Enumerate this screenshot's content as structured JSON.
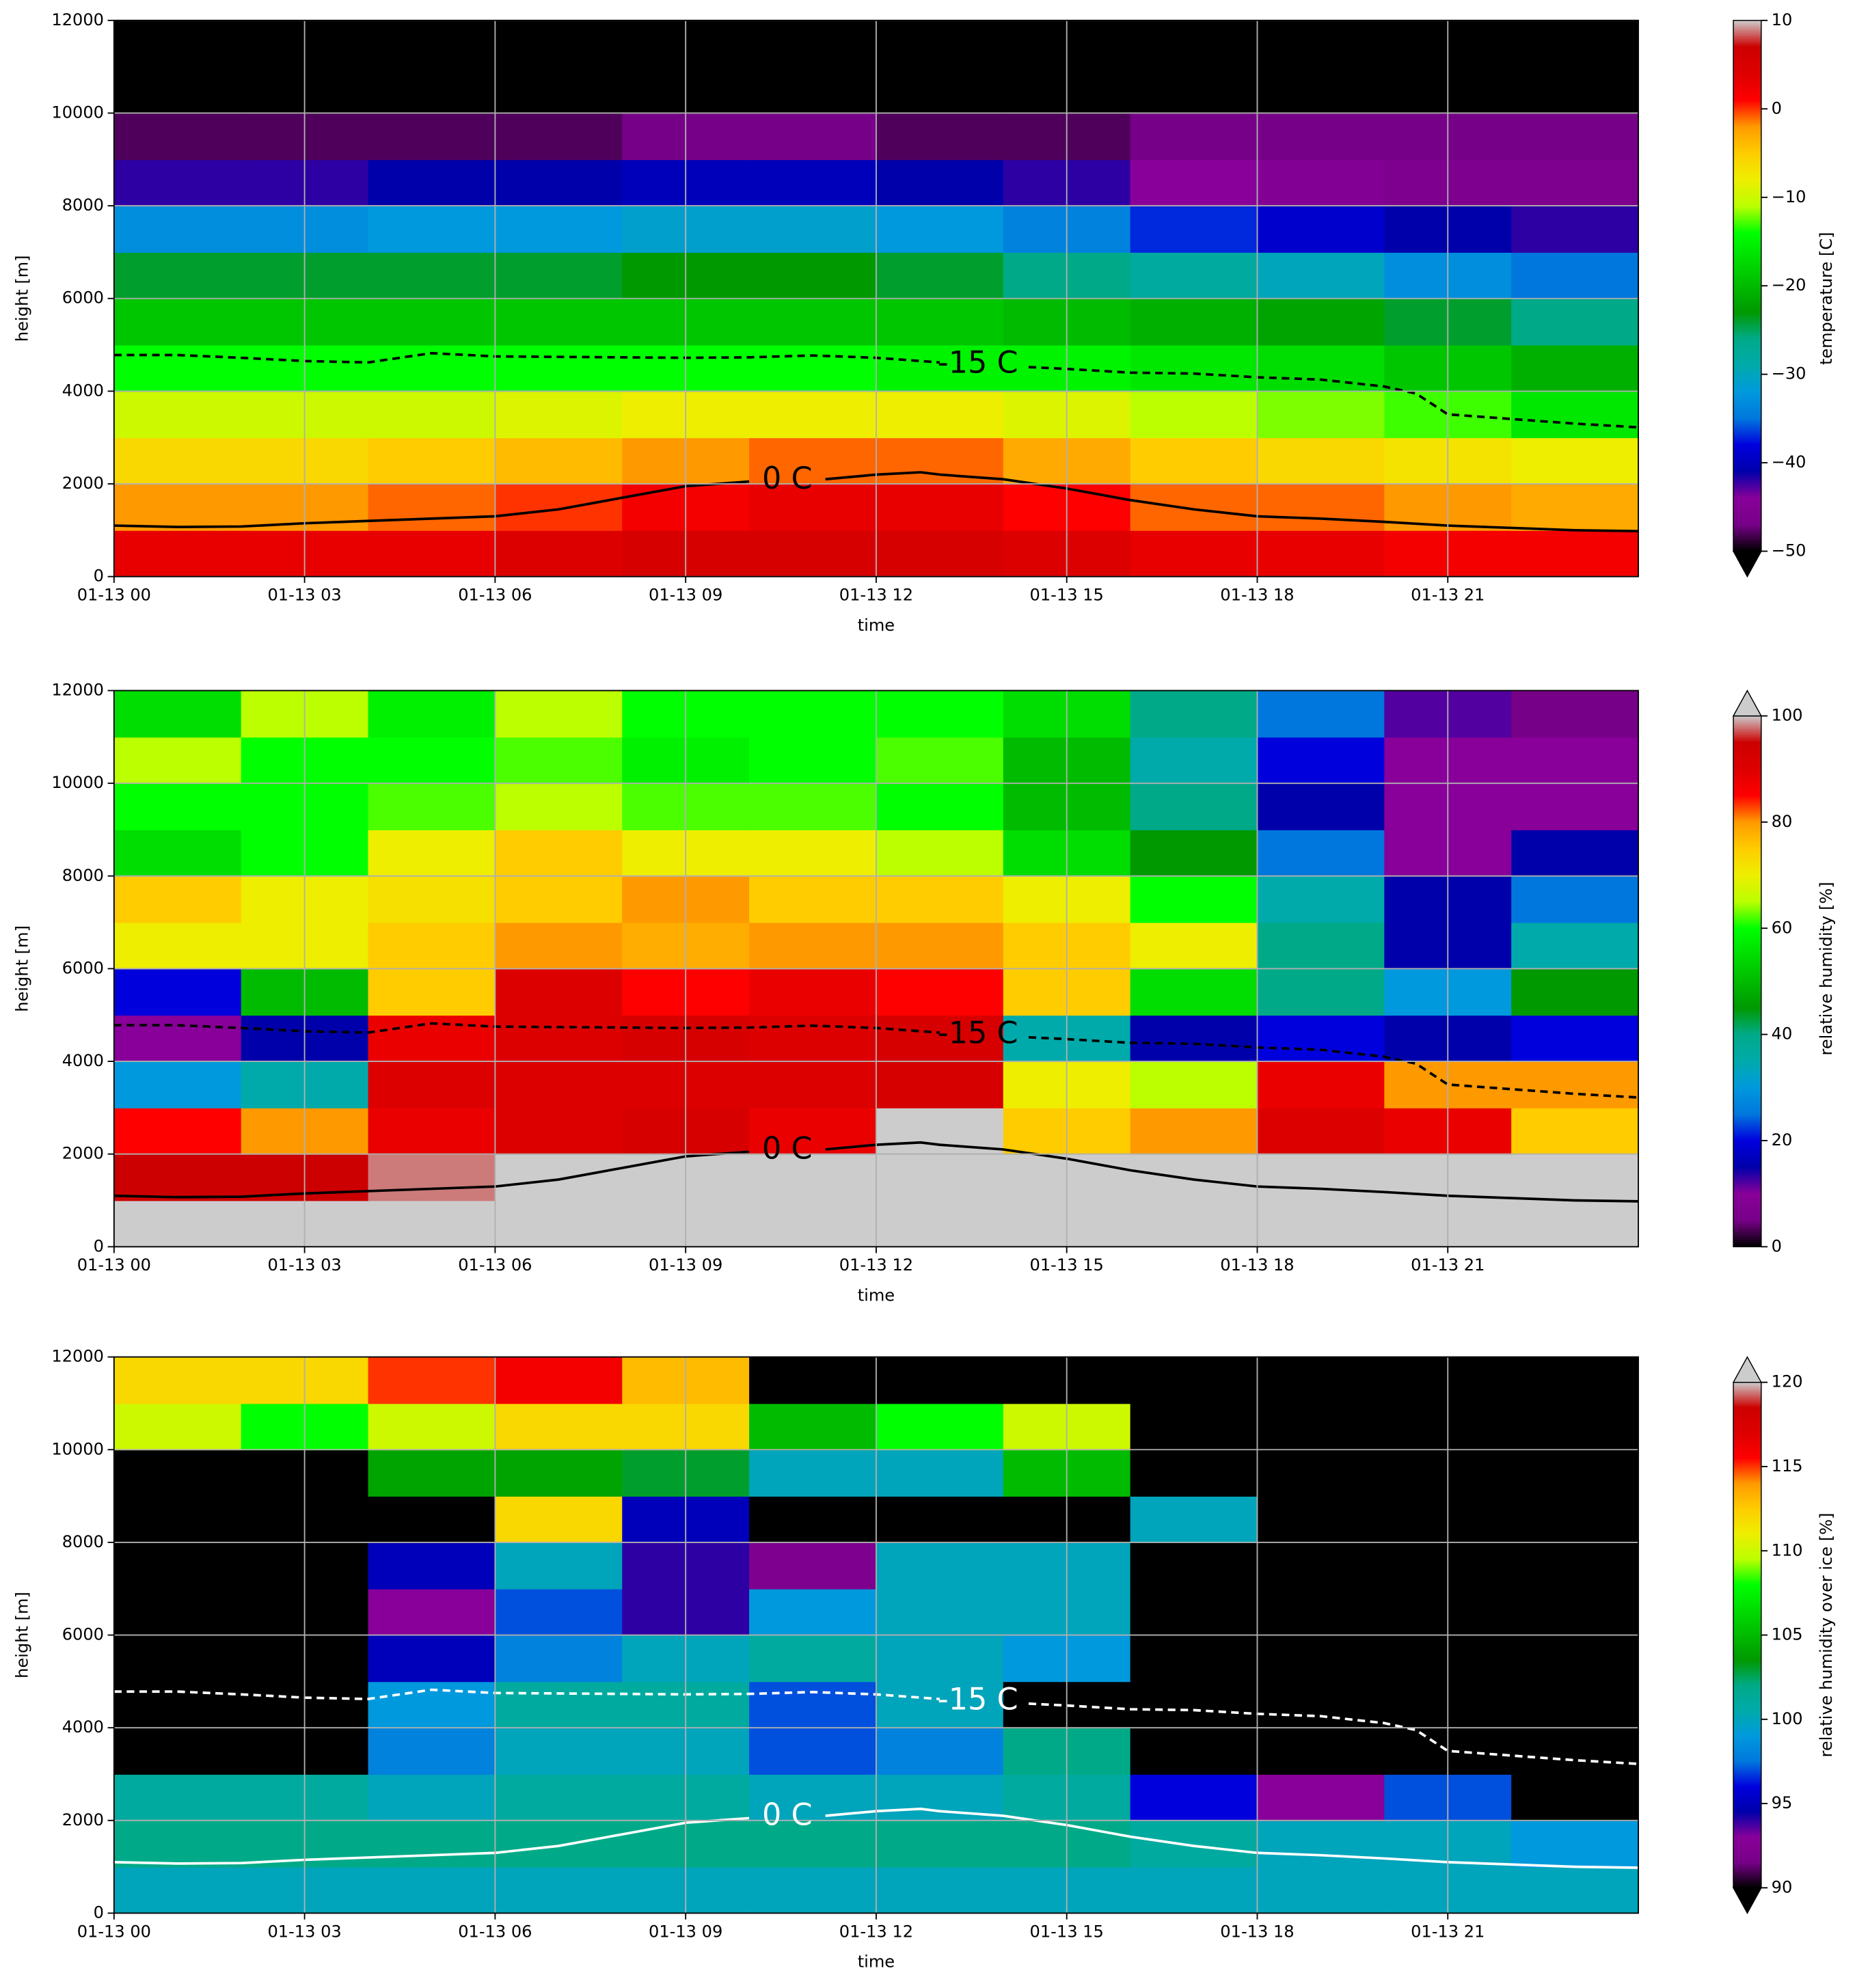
{
  "chart_data": [
    {
      "type": "heatmap",
      "xlabel": "time",
      "ylabel": "height [m]",
      "xlim": [
        0,
        24
      ],
      "ylim": [
        0,
        12000
      ],
      "xticks": [
        {
          "value": 0,
          "label": "01-13 00"
        },
        {
          "value": 3,
          "label": "01-13 03"
        },
        {
          "value": 6,
          "label": "01-13 06"
        },
        {
          "value": 9,
          "label": "01-13 09"
        },
        {
          "value": 12,
          "label": "01-13 12"
        },
        {
          "value": 15,
          "label": "01-13 15"
        },
        {
          "value": 18,
          "label": "01-13 18"
        },
        {
          "value": 21,
          "label": "01-13 21"
        }
      ],
      "yticks": [
        0,
        2000,
        4000,
        6000,
        8000,
        10000,
        12000
      ],
      "grid": true,
      "x": [
        1,
        3,
        5,
        7,
        9,
        11,
        13,
        15,
        17,
        19,
        21,
        23
      ],
      "y": [
        500,
        1500,
        2500,
        3500,
        4500,
        5500,
        6500,
        7500,
        8500,
        9500,
        10500,
        11500
      ],
      "z": [
        [
          3,
          3,
          3,
          4,
          5,
          5,
          5,
          4,
          3,
          3,
          2,
          2
        ],
        [
          -2,
          -2,
          -1,
          0,
          2,
          3,
          3,
          1,
          -1,
          -1,
          -2,
          -3
        ],
        [
          -6,
          -6,
          -5,
          -4,
          -2,
          -1,
          -1,
          -3,
          -5,
          -6,
          -7,
          -8
        ],
        [
          -10,
          -10,
          -10,
          -9,
          -8,
          -8,
          -8,
          -9,
          -11,
          -12,
          -13,
          -16
        ],
        [
          -14,
          -14,
          -14,
          -14,
          -14,
          -14,
          -15,
          -15,
          -16,
          -17,
          -19,
          -21
        ],
        [
          -19,
          -19,
          -19,
          -19,
          -19,
          -19,
          -19,
          -20,
          -21,
          -22,
          -24,
          -26
        ],
        [
          -24,
          -24,
          -24,
          -24,
          -23,
          -23,
          -24,
          -26,
          -28,
          -30,
          -33,
          -35
        ],
        [
          -33,
          -33,
          -32,
          -32,
          -31,
          -31,
          -32,
          -34,
          -37,
          -39,
          -41,
          -42
        ],
        [
          -42,
          -42,
          -41,
          -41,
          -40,
          -40,
          -41,
          -42,
          -44,
          -45,
          -46,
          -46
        ],
        [
          -48,
          -48,
          -48,
          -48,
          -47,
          -47,
          -48,
          -48,
          -47,
          -47,
          -47,
          -47
        ],
        [
          -56,
          -56,
          -56,
          -56,
          -56,
          -56,
          -56,
          -56,
          -56,
          -56,
          -56,
          -56
        ],
        [
          -58,
          -58,
          -58,
          -58,
          -58,
          -58,
          -58,
          -58,
          -58,
          -58,
          -58,
          -58
        ]
      ],
      "colormap": "nipy_spectral",
      "under_color": "#000000",
      "over_color": "#cccccc",
      "colorbar": {
        "label": "temperature [C]",
        "lim": [
          -50,
          10
        ],
        "extend": "min",
        "ticks": [
          {
            "value": -50,
            "label": "−50"
          },
          {
            "value": -40,
            "label": "−40"
          },
          {
            "value": -30,
            "label": "−30"
          },
          {
            "value": -20,
            "label": "−20"
          },
          {
            "value": -10,
            "label": "−10"
          },
          0,
          10
        ]
      },
      "contours": [
        {
          "label": "0 C",
          "color": "#000000",
          "dashed": false,
          "x": [
            0,
            1,
            2,
            3,
            4,
            5,
            6,
            7,
            8,
            9,
            10,
            10.6,
            11.2,
            12,
            12.7,
            13,
            14,
            15,
            16,
            17,
            18,
            19,
            20,
            21,
            22,
            23,
            24
          ],
          "values": [
            1100,
            1070,
            1080,
            1150,
            1200,
            1250,
            1300,
            1450,
            1700,
            1950,
            2050,
            null,
            2100,
            2200,
            2250,
            2200,
            2100,
            1900,
            1650,
            1450,
            1300,
            1250,
            1180,
            1100,
            1050,
            1000,
            980
          ]
        },
        {
          "label": "-15 C",
          "color": "#000000",
          "dashed": true,
          "x": [
            0,
            1,
            2,
            3,
            4,
            5,
            6,
            7,
            8,
            9,
            10,
            11,
            12,
            13,
            13.6,
            14.4,
            15,
            16,
            17,
            18,
            19,
            20,
            20.5,
            21,
            22,
            23,
            24
          ],
          "values": [
            4780,
            4780,
            4720,
            4650,
            4620,
            4820,
            4750,
            4740,
            4730,
            4720,
            4730,
            4770,
            4720,
            4620,
            null,
            4520,
            4480,
            4400,
            4380,
            4300,
            4250,
            4100,
            3950,
            3500,
            3400,
            3300,
            3220
          ]
        }
      ]
    },
    {
      "type": "heatmap",
      "xlabel": "time",
      "ylabel": "height [m]",
      "xlim": [
        0,
        24
      ],
      "ylim": [
        0,
        12000
      ],
      "xticks": [
        {
          "value": 0,
          "label": "01-13 00"
        },
        {
          "value": 3,
          "label": "01-13 03"
        },
        {
          "value": 6,
          "label": "01-13 06"
        },
        {
          "value": 9,
          "label": "01-13 09"
        },
        {
          "value": 12,
          "label": "01-13 12"
        },
        {
          "value": 15,
          "label": "01-13 15"
        },
        {
          "value": 18,
          "label": "01-13 18"
        },
        {
          "value": 21,
          "label": "01-13 21"
        }
      ],
      "yticks": [
        0,
        2000,
        4000,
        6000,
        8000,
        10000,
        12000
      ],
      "grid": true,
      "x": [
        1,
        3,
        5,
        7,
        9,
        11,
        13,
        15,
        17,
        19,
        21,
        23
      ],
      "y": [
        500,
        1500,
        2500,
        3500,
        4500,
        5500,
        6500,
        7500,
        8500,
        9500,
        10500,
        11500
      ],
      "z": [
        [
          100,
          100,
          100,
          100,
          100,
          100,
          100,
          100,
          100,
          100,
          100,
          100
        ],
        [
          95,
          95,
          98,
          100,
          100,
          100,
          100,
          100,
          100,
          100,
          100,
          100
        ],
        [
          85,
          80,
          88,
          90,
          92,
          88,
          100,
          75,
          80,
          90,
          88,
          75
        ],
        [
          30,
          35,
          90,
          90,
          90,
          90,
          92,
          70,
          65,
          88,
          80,
          80
        ],
        [
          10,
          15,
          88,
          90,
          92,
          90,
          92,
          35,
          15,
          20,
          15,
          20
        ],
        [
          20,
          50,
          75,
          90,
          85,
          88,
          85,
          75,
          55,
          40,
          30,
          45
        ],
        [
          70,
          70,
          75,
          80,
          78,
          80,
          80,
          75,
          70,
          40,
          15,
          35
        ],
        [
          75,
          70,
          72,
          75,
          80,
          75,
          75,
          70,
          60,
          35,
          15,
          25
        ],
        [
          55,
          60,
          70,
          75,
          70,
          70,
          65,
          55,
          45,
          25,
          10,
          15
        ],
        [
          60,
          60,
          62,
          65,
          62,
          62,
          60,
          50,
          40,
          15,
          10,
          10
        ],
        [
          65,
          60,
          60,
          62,
          58,
          60,
          62,
          50,
          35,
          20,
          10,
          10
        ],
        [
          55,
          65,
          58,
          65,
          60,
          60,
          60,
          55,
          40,
          25,
          12,
          5
        ]
      ],
      "colormap": "nipy_spectral",
      "under_color": "#000000",
      "over_color": "#cccccc",
      "colorbar": {
        "label": "relative humidity [%]",
        "lim": [
          0,
          100
        ],
        "extend": "max",
        "ticks": [
          0,
          20,
          40,
          60,
          80,
          100
        ]
      },
      "contours": [
        {
          "label": "0 C",
          "color": "#000000",
          "dashed": false,
          "x": [
            0,
            1,
            2,
            3,
            4,
            5,
            6,
            7,
            8,
            9,
            10,
            10.6,
            11.2,
            12,
            12.7,
            13,
            14,
            15,
            16,
            17,
            18,
            19,
            20,
            21,
            22,
            23,
            24
          ],
          "values": [
            1100,
            1070,
            1080,
            1150,
            1200,
            1250,
            1300,
            1450,
            1700,
            1950,
            2050,
            null,
            2100,
            2200,
            2250,
            2200,
            2100,
            1900,
            1650,
            1450,
            1300,
            1250,
            1180,
            1100,
            1050,
            1000,
            980
          ]
        },
        {
          "label": "-15 C",
          "color": "#000000",
          "dashed": true,
          "x": [
            0,
            1,
            2,
            3,
            4,
            5,
            6,
            7,
            8,
            9,
            10,
            11,
            12,
            13,
            13.6,
            14.4,
            15,
            16,
            17,
            18,
            19,
            20,
            20.5,
            21,
            22,
            23,
            24
          ],
          "values": [
            4780,
            4780,
            4720,
            4650,
            4620,
            4820,
            4750,
            4740,
            4730,
            4720,
            4730,
            4770,
            4720,
            4620,
            null,
            4520,
            4480,
            4400,
            4380,
            4300,
            4250,
            4100,
            3950,
            3500,
            3400,
            3300,
            3220
          ]
        }
      ]
    },
    {
      "type": "heatmap",
      "xlabel": "time",
      "ylabel": "height [m]",
      "xlim": [
        0,
        24
      ],
      "ylim": [
        0,
        12000
      ],
      "xticks": [
        {
          "value": 0,
          "label": "01-13 00"
        },
        {
          "value": 3,
          "label": "01-13 03"
        },
        {
          "value": 6,
          "label": "01-13 06"
        },
        {
          "value": 9,
          "label": "01-13 09"
        },
        {
          "value": 12,
          "label": "01-13 12"
        },
        {
          "value": 15,
          "label": "01-13 15"
        },
        {
          "value": 18,
          "label": "01-13 18"
        },
        {
          "value": 21,
          "label": "01-13 21"
        }
      ],
      "yticks": [
        0,
        2000,
        4000,
        6000,
        8000,
        10000,
        12000
      ],
      "grid": true,
      "x": [
        1,
        3,
        5,
        7,
        9,
        11,
        13,
        15,
        17,
        19,
        21,
        23
      ],
      "y": [
        500,
        1500,
        2500,
        3500,
        4500,
        5500,
        6500,
        7500,
        8500,
        9500,
        10500,
        11500
      ],
      "z": [
        [
          100,
          100,
          100,
          100,
          100,
          100,
          100,
          100,
          100,
          100,
          100,
          100
        ],
        [
          102,
          102,
          102,
          102,
          102,
          102,
          102,
          102,
          101,
          100,
          100,
          99
        ],
        [
          101,
          101,
          100,
          101,
          101,
          100,
          100,
          101,
          96,
          93,
          97,
          80
        ],
        [
          80,
          80,
          98,
          100,
          100,
          97,
          98,
          102,
          80,
          80,
          80,
          80
        ],
        [
          80,
          80,
          99,
          101,
          101,
          97,
          100,
          80,
          80,
          80,
          80,
          80
        ],
        [
          80,
          80,
          95,
          98,
          100,
          101,
          100,
          99,
          80,
          80,
          80,
          80
        ],
        [
          80,
          80,
          93,
          97,
          94,
          99,
          100,
          100,
          80,
          80,
          80,
          80
        ],
        [
          80,
          80,
          95,
          100,
          94,
          92,
          100,
          100,
          80,
          80,
          80,
          80
        ],
        [
          80,
          80,
          80,
          112,
          95,
          80,
          80,
          80,
          100,
          80,
          80,
          80
        ],
        [
          80,
          80,
          104,
          104,
          103,
          100,
          100,
          105,
          80,
          80,
          80,
          80
        ],
        [
          110,
          108,
          110,
          112,
          112,
          105,
          108,
          110,
          80,
          80,
          80,
          80
        ],
        [
          112,
          112,
          115,
          116,
          113,
          80,
          80,
          80,
          80,
          80,
          80,
          80
        ]
      ],
      "colormap": "nipy_spectral",
      "under_color": "#000000",
      "over_color": "#cccccc",
      "colorbar": {
        "label": "relative humidity over ice [%]",
        "lim": [
          90,
          120
        ],
        "extend": "both",
        "ticks": [
          90,
          95,
          100,
          105,
          110,
          115,
          120
        ]
      },
      "contours": [
        {
          "label": "0 C",
          "color": "#ffffff",
          "dashed": false,
          "x": [
            0,
            1,
            2,
            3,
            4,
            5,
            6,
            7,
            8,
            9,
            10,
            10.6,
            11.2,
            12,
            12.7,
            13,
            14,
            15,
            16,
            17,
            18,
            19,
            20,
            21,
            22,
            23,
            24
          ],
          "values": [
            1100,
            1070,
            1080,
            1150,
            1200,
            1250,
            1300,
            1450,
            1700,
            1950,
            2050,
            null,
            2100,
            2200,
            2250,
            2200,
            2100,
            1900,
            1650,
            1450,
            1300,
            1250,
            1180,
            1100,
            1050,
            1000,
            980
          ]
        },
        {
          "label": "-15 C",
          "color": "#ffffff",
          "dashed": true,
          "x": [
            0,
            1,
            2,
            3,
            4,
            5,
            6,
            7,
            8,
            9,
            10,
            11,
            12,
            13,
            13.6,
            14.4,
            15,
            16,
            17,
            18,
            19,
            20,
            20.5,
            21,
            22,
            23,
            24
          ],
          "values": [
            4780,
            4780,
            4720,
            4650,
            4620,
            4820,
            4750,
            4740,
            4730,
            4720,
            4730,
            4770,
            4720,
            4620,
            null,
            4520,
            4480,
            4400,
            4380,
            4300,
            4250,
            4100,
            3950,
            3500,
            3400,
            3300,
            3220
          ]
        }
      ]
    }
  ]
}
